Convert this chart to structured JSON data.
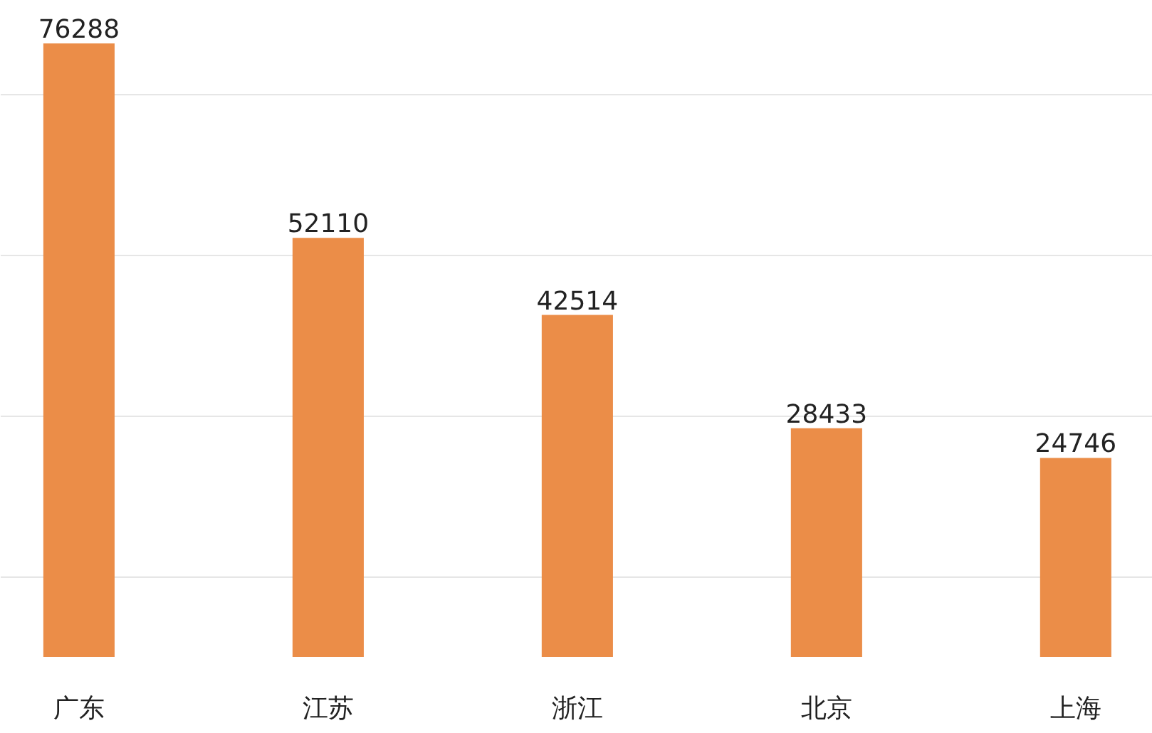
{
  "chart_data": {
    "type": "bar",
    "categories": [
      "广东",
      "江苏",
      "浙江",
      "北京",
      "上海"
    ],
    "values": [
      76288,
      52110,
      42514,
      28433,
      24746
    ],
    "color": "#eb8d48",
    "data_labels": true,
    "yticks": [
      {
        "value": 10000,
        "label": null
      },
      {
        "value": 30000,
        "label": null
      },
      {
        "value": 50000,
        "label": null
      },
      {
        "value": 70000,
        "label": null
      }
    ],
    "grid": "y",
    "tick_labels": "x"
  }
}
